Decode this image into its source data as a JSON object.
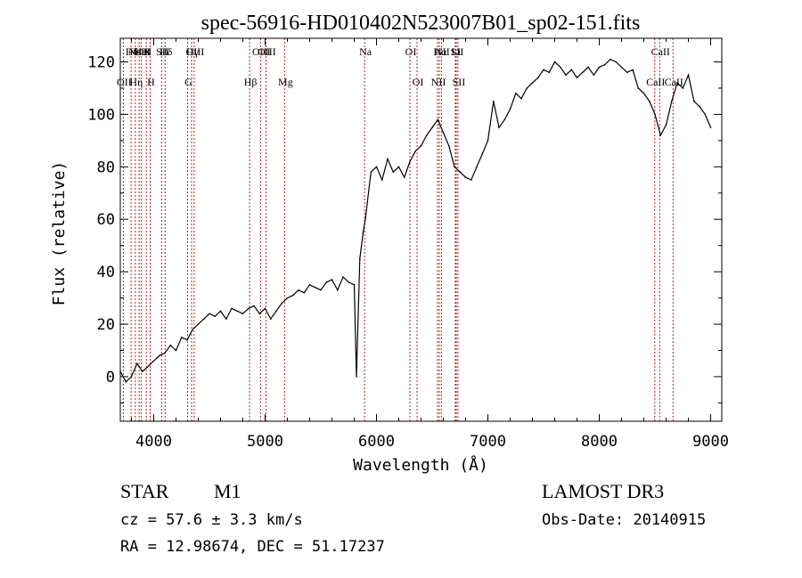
{
  "chart_data": {
    "type": "line",
    "title": "spec-56916-HD010402N523007B01_sp02-151.fits",
    "xlabel": "Wavelength (Å)",
    "ylabel": "Flux (relative)",
    "xlim": [
      3700,
      9100
    ],
    "ylim": [
      -17,
      129
    ],
    "xticks": [
      4000,
      5000,
      6000,
      7000,
      8000,
      9000
    ],
    "yticks": [
      0,
      20,
      40,
      60,
      80,
      100,
      120
    ],
    "grid": false,
    "series": [
      {
        "color": "#000000",
        "x": [
          3700,
          3750,
          3800,
          3850,
          3900,
          3950,
          4000,
          4050,
          4100,
          4150,
          4200,
          4250,
          4300,
          4350,
          4400,
          4450,
          4500,
          4550,
          4600,
          4650,
          4700,
          4750,
          4800,
          4850,
          4900,
          4950,
          5000,
          5050,
          5100,
          5150,
          5200,
          5250,
          5300,
          5350,
          5400,
          5450,
          5500,
          5550,
          5600,
          5650,
          5700,
          5750,
          5800,
          5820,
          5850,
          5880,
          5900,
          5950,
          6000,
          6050,
          6100,
          6150,
          6200,
          6250,
          6300,
          6350,
          6400,
          6450,
          6500,
          6550,
          6600,
          6650,
          6700,
          6750,
          6800,
          6850,
          6900,
          6950,
          7000,
          7050,
          7100,
          7150,
          7200,
          7250,
          7300,
          7350,
          7400,
          7450,
          7500,
          7550,
          7600,
          7650,
          7700,
          7750,
          7800,
          7850,
          7900,
          7950,
          8000,
          8050,
          8100,
          8150,
          8200,
          8250,
          8300,
          8350,
          8400,
          8450,
          8500,
          8550,
          8600,
          8650,
          8700,
          8750,
          8800,
          8850,
          8900,
          8950,
          9000
        ],
        "y": [
          2,
          -2,
          0,
          5,
          2,
          4,
          6,
          8,
          9,
          12,
          10,
          15,
          14,
          18,
          20,
          22,
          24,
          23,
          25,
          22,
          26,
          25,
          24,
          26,
          27,
          24,
          26,
          22,
          25,
          28,
          30,
          31,
          33,
          32,
          35,
          34,
          33,
          36,
          37,
          33,
          38,
          36,
          35,
          0,
          45,
          55,
          60,
          78,
          80,
          75,
          83,
          78,
          80,
          76,
          82,
          86,
          88,
          92,
          95,
          98,
          93,
          88,
          80,
          78,
          76,
          75,
          80,
          85,
          90,
          105,
          95,
          98,
          102,
          108,
          106,
          110,
          112,
          114,
          117,
          116,
          120,
          118,
          115,
          117,
          114,
          116,
          118,
          115,
          118,
          119,
          121,
          120,
          118,
          116,
          117,
          110,
          108,
          105,
          100,
          92,
          96,
          105,
          112,
          110,
          115,
          105,
          103,
          100,
          95
        ]
      }
    ],
    "lines": [
      {
        "x": 3727,
        "label": "OII",
        "row": 2
      },
      {
        "x": 3797,
        "label": "Hθ",
        "row": 1
      },
      {
        "x": 3835,
        "label": "Hη",
        "row": 2
      },
      {
        "x": 3869,
        "label": "NeIII",
        "row": 1
      },
      {
        "x": 3889,
        "label": "HeI",
        "row": 1
      },
      {
        "x": 3934,
        "label": "K",
        "row": 1
      },
      {
        "x": 3968,
        "label": "H",
        "row": 2
      },
      {
        "x": 4071,
        "label": "SII",
        "row": 1
      },
      {
        "x": 4102,
        "label": "Hδ",
        "row": 1
      },
      {
        "x": 4304,
        "label": "G",
        "row": 2
      },
      {
        "x": 4340,
        "label": "Hγ",
        "row": 1
      },
      {
        "x": 4363,
        "label": "OIII",
        "row": 1
      },
      {
        "x": 4861,
        "label": "Hβ",
        "row": 2
      },
      {
        "x": 4959,
        "label": "OIII",
        "row": 1
      },
      {
        "x": 5007,
        "label": "OIII",
        "row": 1
      },
      {
        "x": 5175,
        "label": "Mg",
        "row": 2
      },
      {
        "x": 5893,
        "label": "Na",
        "row": 1
      },
      {
        "x": 6300,
        "label": "OI",
        "row": 1
      },
      {
        "x": 6364,
        "label": "OI",
        "row": 2
      },
      {
        "x": 6548,
        "label": "NII",
        "row": 2
      },
      {
        "x": 6563,
        "label": "Hα",
        "row": 1
      },
      {
        "x": 6583,
        "label": "NII",
        "row": 1
      },
      {
        "x": 6707,
        "label": "Li",
        "row": 1
      },
      {
        "x": 6716,
        "label": "SII",
        "row": 1
      },
      {
        "x": 6731,
        "label": "SII",
        "row": 2
      },
      {
        "x": 8498,
        "label": "CaII",
        "row": 2
      },
      {
        "x": 8542,
        "label": "CaII",
        "row": 1
      },
      {
        "x": 8662,
        "label": "CaII",
        "row": 2
      }
    ]
  },
  "info": {
    "object_class": "STAR",
    "subclass": "M1",
    "survey": "LAMOST DR3",
    "redshift_line": "cz = 57.6 ± 3.3 km/s",
    "obs_date_line": "Obs-Date: 20140915",
    "coords_line": "RA =  12.98674, DEC =  51.17237"
  }
}
